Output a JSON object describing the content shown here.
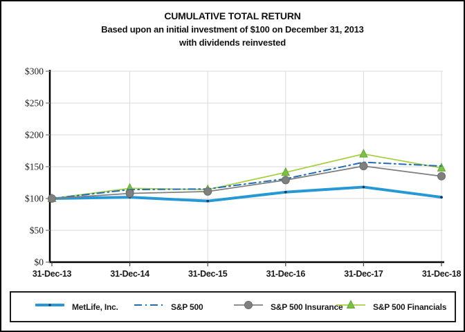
{
  "title": {
    "line1": "CUMULATIVE TOTAL RETURN",
    "line2": "Based upon an initial investment of $100 on December 31, 2013",
    "line3": "with dividends reinvested"
  },
  "chart_data": {
    "type": "line",
    "title": "CUMULATIVE TOTAL RETURN",
    "subtitle": "Based upon an initial investment of $100 on December 31, 2013 with dividends reinvested",
    "x": [
      "31-Dec-13",
      "31-Dec-14",
      "31-Dec-15",
      "31-Dec-16",
      "31-Dec-17",
      "31-Dec-18"
    ],
    "series": [
      {
        "name": "MetLife, Inc.",
        "values": [
          100,
          102,
          96,
          110,
          118,
          102
        ],
        "color": "#2598d5",
        "line_style": "solid-thick",
        "marker": "dot",
        "marker_color": "#16365c"
      },
      {
        "name": "S&P 500",
        "values": [
          100,
          114,
          115,
          131,
          157,
          151
        ],
        "color": "#1e6db6",
        "line_style": "dash-dot",
        "marker": "none",
        "marker_color": "#1e6db6"
      },
      {
        "name": "S&P 500 Insurance",
        "values": [
          100,
          108,
          111,
          129,
          151,
          135
        ],
        "color": "#7f7f7f",
        "line_style": "solid",
        "marker": "circle",
        "marker_color": "#7f7f7f"
      },
      {
        "name": "S&P 500 Financials",
        "values": [
          100,
          116,
          114,
          141,
          170,
          148
        ],
        "color": "#a9cf44",
        "line_style": "solid",
        "marker": "triangle",
        "marker_color": "#7dc142"
      }
    ],
    "ylim": [
      0,
      300
    ],
    "ytick_step": 50,
    "ytick_labels": [
      "$0",
      "$50",
      "$100",
      "$150",
      "$200",
      "$250",
      "$300"
    ],
    "grid": true,
    "legend_position": "bottom"
  },
  "colors": {
    "axis": "#000000",
    "gridline": "#d9d9d9",
    "tick": "#8c8c8c",
    "text": "#1a1a1a"
  }
}
